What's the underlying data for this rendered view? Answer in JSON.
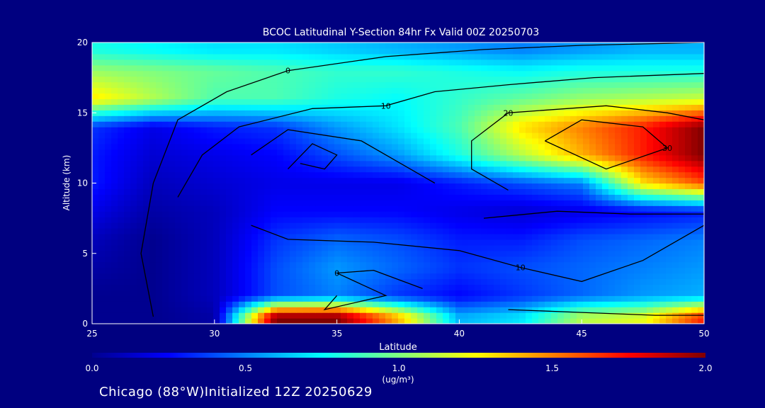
{
  "chart_data": {
    "type": "heatmap",
    "title": "BCOC Latitudinal Y-Section 84hr  Fx Valid 00Z 20250703",
    "xlabel": "Latitude",
    "ylabel": "Altitude (km)",
    "xlim": [
      25,
      50
    ],
    "ylim": [
      0,
      20
    ],
    "x_ticks": [
      "25",
      "30",
      "35",
      "40",
      "45",
      "50"
    ],
    "y_ticks": [
      "0",
      "5",
      "10",
      "15",
      "20"
    ],
    "colorbar": {
      "label": "(ug/m³)",
      "range": [
        0.0,
        2.0
      ],
      "ticks": [
        "0.0",
        "0.5",
        "1.0",
        "1.5",
        "2.0"
      ],
      "colormap": "jet"
    },
    "field_grid": {
      "latitudes": [
        25,
        27.5,
        30,
        32.5,
        35,
        37.5,
        40,
        42.5,
        45,
        47.5,
        50
      ],
      "altitudes": [
        0.5,
        2,
        4,
        6,
        8,
        10,
        12,
        14,
        16,
        18,
        19.5
      ],
      "values": [
        [
          0.0,
          0.0,
          0.05,
          2.0,
          2.0,
          1.4,
          0.6,
          0.7,
          1.1,
          1.2,
          1.7
        ],
        [
          0.0,
          0.0,
          0.1,
          0.4,
          0.5,
          0.35,
          0.25,
          0.35,
          0.45,
          0.55,
          0.6
        ],
        [
          0.05,
          0.0,
          0.1,
          0.4,
          0.55,
          0.45,
          0.35,
          0.4,
          0.45,
          0.5,
          0.55
        ],
        [
          0.1,
          0.0,
          0.1,
          0.35,
          0.45,
          0.4,
          0.3,
          0.3,
          0.4,
          0.45,
          0.5
        ],
        [
          0.2,
          0.05,
          0.1,
          0.25,
          0.25,
          0.25,
          0.2,
          0.15,
          0.2,
          0.25,
          0.3
        ],
        [
          0.3,
          0.1,
          0.15,
          0.2,
          0.2,
          0.2,
          0.3,
          0.4,
          0.5,
          1.3,
          1.6
        ],
        [
          0.3,
          0.15,
          0.2,
          0.25,
          0.4,
          0.55,
          0.8,
          1.1,
          1.4,
          1.7,
          2.0
        ],
        [
          0.35,
          0.2,
          0.3,
          0.35,
          0.55,
          0.7,
          0.9,
          1.3,
          1.5,
          1.7,
          2.0
        ],
        [
          1.3,
          1.1,
          0.9,
          0.9,
          0.8,
          0.75,
          0.85,
          0.95,
          1.05,
          1.1,
          1.15
        ],
        [
          1.05,
          1.0,
          0.95,
          0.9,
          0.85,
          0.85,
          0.8,
          0.75,
          0.8,
          0.8,
          0.8
        ],
        [
          0.8,
          0.75,
          0.7,
          0.7,
          0.65,
          0.6,
          0.55,
          0.5,
          0.55,
          0.6,
          0.6
        ]
      ]
    },
    "contours": [
      {
        "label": "0",
        "points": [
          [
            27.5,
            0.5
          ],
          [
            27.0,
            5
          ],
          [
            27.5,
            10
          ],
          [
            28.5,
            14.5
          ],
          [
            30.5,
            16.5
          ],
          [
            33.0,
            18.0
          ],
          [
            37.0,
            19.0
          ],
          [
            41.0,
            19.5
          ],
          [
            45.0,
            19.8
          ],
          [
            50.0,
            20.0
          ]
        ]
      },
      {
        "label": "10",
        "points": [
          [
            28.5,
            9.0
          ],
          [
            29.5,
            12.0
          ],
          [
            31.0,
            14.0
          ],
          [
            34.0,
            15.3
          ],
          [
            37.0,
            15.5
          ],
          [
            39.0,
            16.5
          ],
          [
            42.0,
            17.0
          ],
          [
            45.5,
            17.5
          ],
          [
            50.0,
            17.8
          ]
        ]
      },
      {
        "label": "20",
        "points": [
          [
            42.0,
            9.5
          ],
          [
            40.5,
            11.0
          ],
          [
            40.5,
            13.0
          ],
          [
            42.0,
            15.0
          ],
          [
            46.0,
            15.5
          ],
          [
            48.5,
            15.0
          ],
          [
            50.0,
            14.5
          ]
        ]
      },
      {
        "label": "30",
        "points": [
          [
            43.5,
            13.0
          ],
          [
            45.0,
            14.5
          ],
          [
            47.5,
            14.0
          ],
          [
            48.5,
            12.5
          ],
          [
            46.0,
            11.0
          ],
          [
            43.5,
            13.0
          ]
        ]
      },
      {
        "label": "10",
        "points": [
          [
            31.5,
            7.0
          ],
          [
            33.0,
            6.0
          ],
          [
            36.5,
            5.8
          ],
          [
            40.0,
            5.2
          ],
          [
            42.5,
            4.0
          ],
          [
            45.0,
            3.0
          ],
          [
            47.5,
            4.5
          ],
          [
            50.0,
            7.0
          ]
        ]
      },
      {
        "label": "0",
        "points": [
          [
            35.0,
            2.0
          ],
          [
            34.5,
            1.0
          ],
          [
            37.0,
            2.0
          ],
          [
            35.0,
            3.6
          ],
          [
            36.5,
            3.8
          ],
          [
            38.5,
            2.5
          ]
        ]
      },
      {
        "label": "",
        "points": [
          [
            33.0,
            11.0
          ],
          [
            34.0,
            12.8
          ],
          [
            35.0,
            12.0
          ],
          [
            34.5,
            11.0
          ],
          [
            33.5,
            11.4
          ]
        ]
      },
      {
        "label": "",
        "points": [
          [
            31.5,
            12.0
          ],
          [
            33.0,
            13.8
          ],
          [
            36.0,
            13.0
          ],
          [
            37.5,
            11.5
          ],
          [
            39.0,
            10.0
          ]
        ]
      },
      {
        "label": "",
        "points": [
          [
            41.0,
            7.5
          ],
          [
            44.0,
            8.0
          ],
          [
            47.0,
            7.8
          ],
          [
            50.0,
            7.8
          ]
        ]
      },
      {
        "label": "",
        "points": [
          [
            42.0,
            1.0
          ],
          [
            45.0,
            0.8
          ],
          [
            48.0,
            0.6
          ],
          [
            50.0,
            0.6
          ]
        ]
      }
    ]
  },
  "footer": "Chicago (88°W)Initialized 12Z 20250629"
}
